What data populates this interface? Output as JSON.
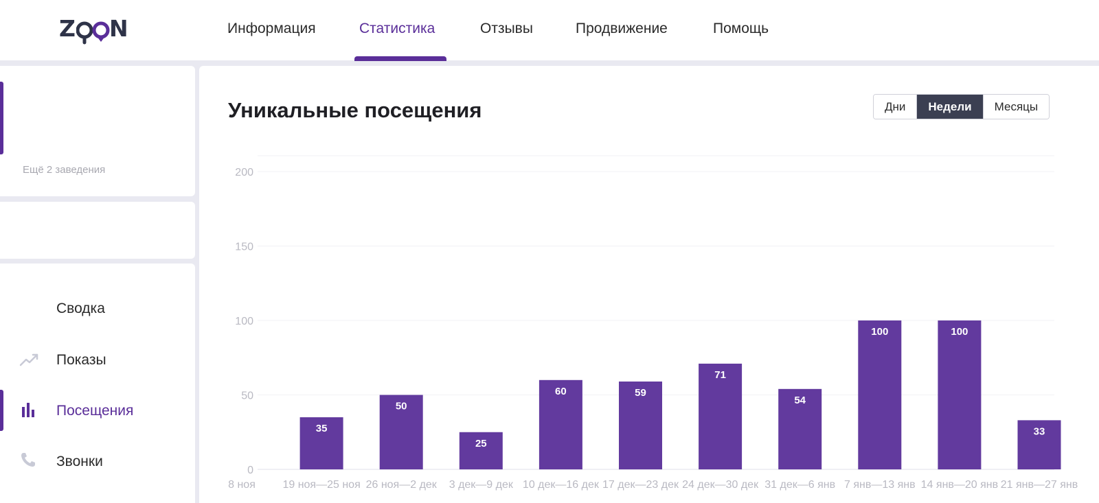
{
  "header": {
    "logo": "ZOON",
    "nav": [
      {
        "label": "Информация",
        "active": false
      },
      {
        "label": "Статистика",
        "active": true
      },
      {
        "label": "Отзывы",
        "active": false
      },
      {
        "label": "Продвижение",
        "active": false
      },
      {
        "label": "Помощь",
        "active": false
      }
    ]
  },
  "sidebar": {
    "more_places": "Ещё 2 заведения",
    "menu": [
      {
        "label": "Сводка",
        "icon": "none",
        "active": false
      },
      {
        "label": "Показы",
        "icon": "trend-icon",
        "active": false
      },
      {
        "label": "Посещения",
        "icon": "bar-chart-icon",
        "active": true
      },
      {
        "label": "Звонки",
        "icon": "phone-icon",
        "active": false
      }
    ]
  },
  "main": {
    "title": "Уникальные посещения",
    "period_options": [
      "Дни",
      "Недели",
      "Месяцы"
    ],
    "period_selected": "Недели"
  },
  "colors": {
    "accent": "#5a2e99",
    "bar": "#623a9e",
    "toggle_active": "#3b3f52"
  },
  "chart_data": {
    "type": "bar",
    "categories": [
      "8 ноя",
      "19 ноя—25 ноя",
      "26 ноя—2 дек",
      "3 дек—9 дек",
      "10 дек—16 дек",
      "17 дек—23 дек",
      "24 дек—30 дек",
      "31 дек—6 янв",
      "7 янв—13 янв",
      "14 янв—20 янв",
      "21 янв—27 янв"
    ],
    "values": [
      null,
      35,
      50,
      25,
      60,
      59,
      71,
      54,
      100,
      100,
      33
    ],
    "yticks": [
      0,
      50,
      100,
      150,
      200
    ],
    "ylim": [
      0,
      200
    ],
    "title": "Уникальные посещения",
    "grid": true,
    "data_labels": true
  }
}
